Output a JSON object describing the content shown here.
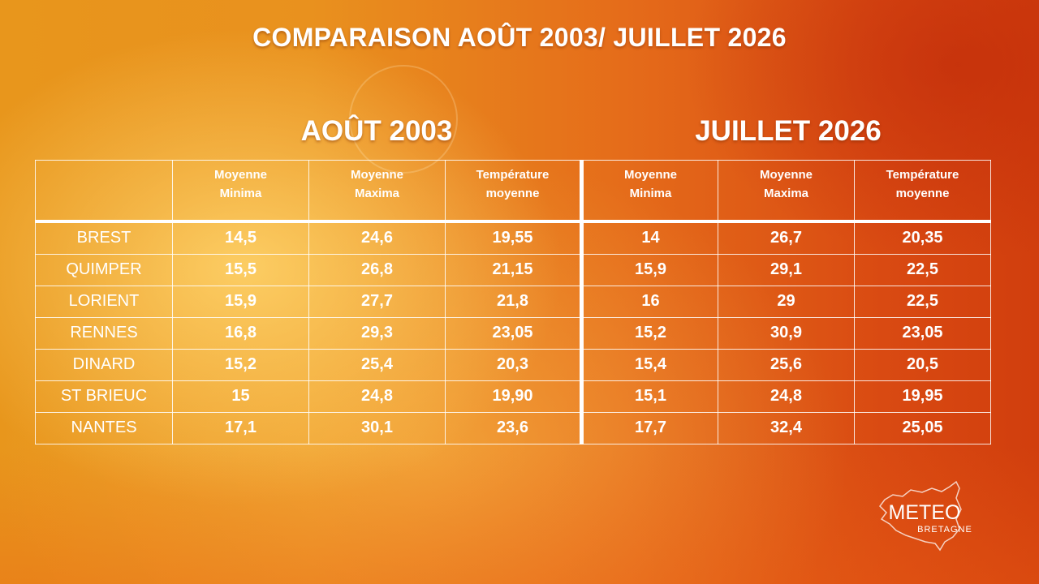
{
  "title": "COMPARAISON AOÛT 2003/ JUILLET 2026",
  "periods": {
    "left": "AOÛT 2003",
    "right": "JUILLET 2026"
  },
  "columns": {
    "min": "Moyenne Minima",
    "max": "Moyenne Maxima",
    "avg": "Température moyenne"
  },
  "rows": [
    {
      "city": "BREST",
      "a_min": "14,5",
      "a_max": "24,6",
      "a_avg": "19,55",
      "j_min": "14",
      "j_max": "26,7",
      "j_avg": "20,35"
    },
    {
      "city": "QUIMPER",
      "a_min": "15,5",
      "a_max": "26,8",
      "a_avg": "21,15",
      "j_min": "15,9",
      "j_max": "29,1",
      "j_avg": "22,5"
    },
    {
      "city": "LORIENT",
      "a_min": "15,9",
      "a_max": "27,7",
      "a_avg": "21,8",
      "j_min": "16",
      "j_max": "29",
      "j_avg": "22,5"
    },
    {
      "city": "RENNES",
      "a_min": "16,8",
      "a_max": "29,3",
      "a_avg": "23,05",
      "j_min": "15,2",
      "j_max": "30,9",
      "j_avg": "23,05"
    },
    {
      "city": "DINARD",
      "a_min": "15,2",
      "a_max": "25,4",
      "a_avg": "20,3",
      "j_min": "15,4",
      "j_max": "25,6",
      "j_avg": "20,5"
    },
    {
      "city": "ST BRIEUC",
      "a_min": "15",
      "a_max": "24,8",
      "a_avg": "19,90",
      "j_min": "15,1",
      "j_max": "24,8",
      "j_avg": "19,95"
    },
    {
      "city": "NANTES",
      "a_min": "17,1",
      "a_max": "30,1",
      "a_avg": "23,6",
      "j_min": "17,7",
      "j_max": "32,4",
      "j_avg": "25,05"
    }
  ],
  "logo": {
    "line1": "METEO",
    "line2": "BRETAGNE"
  }
}
